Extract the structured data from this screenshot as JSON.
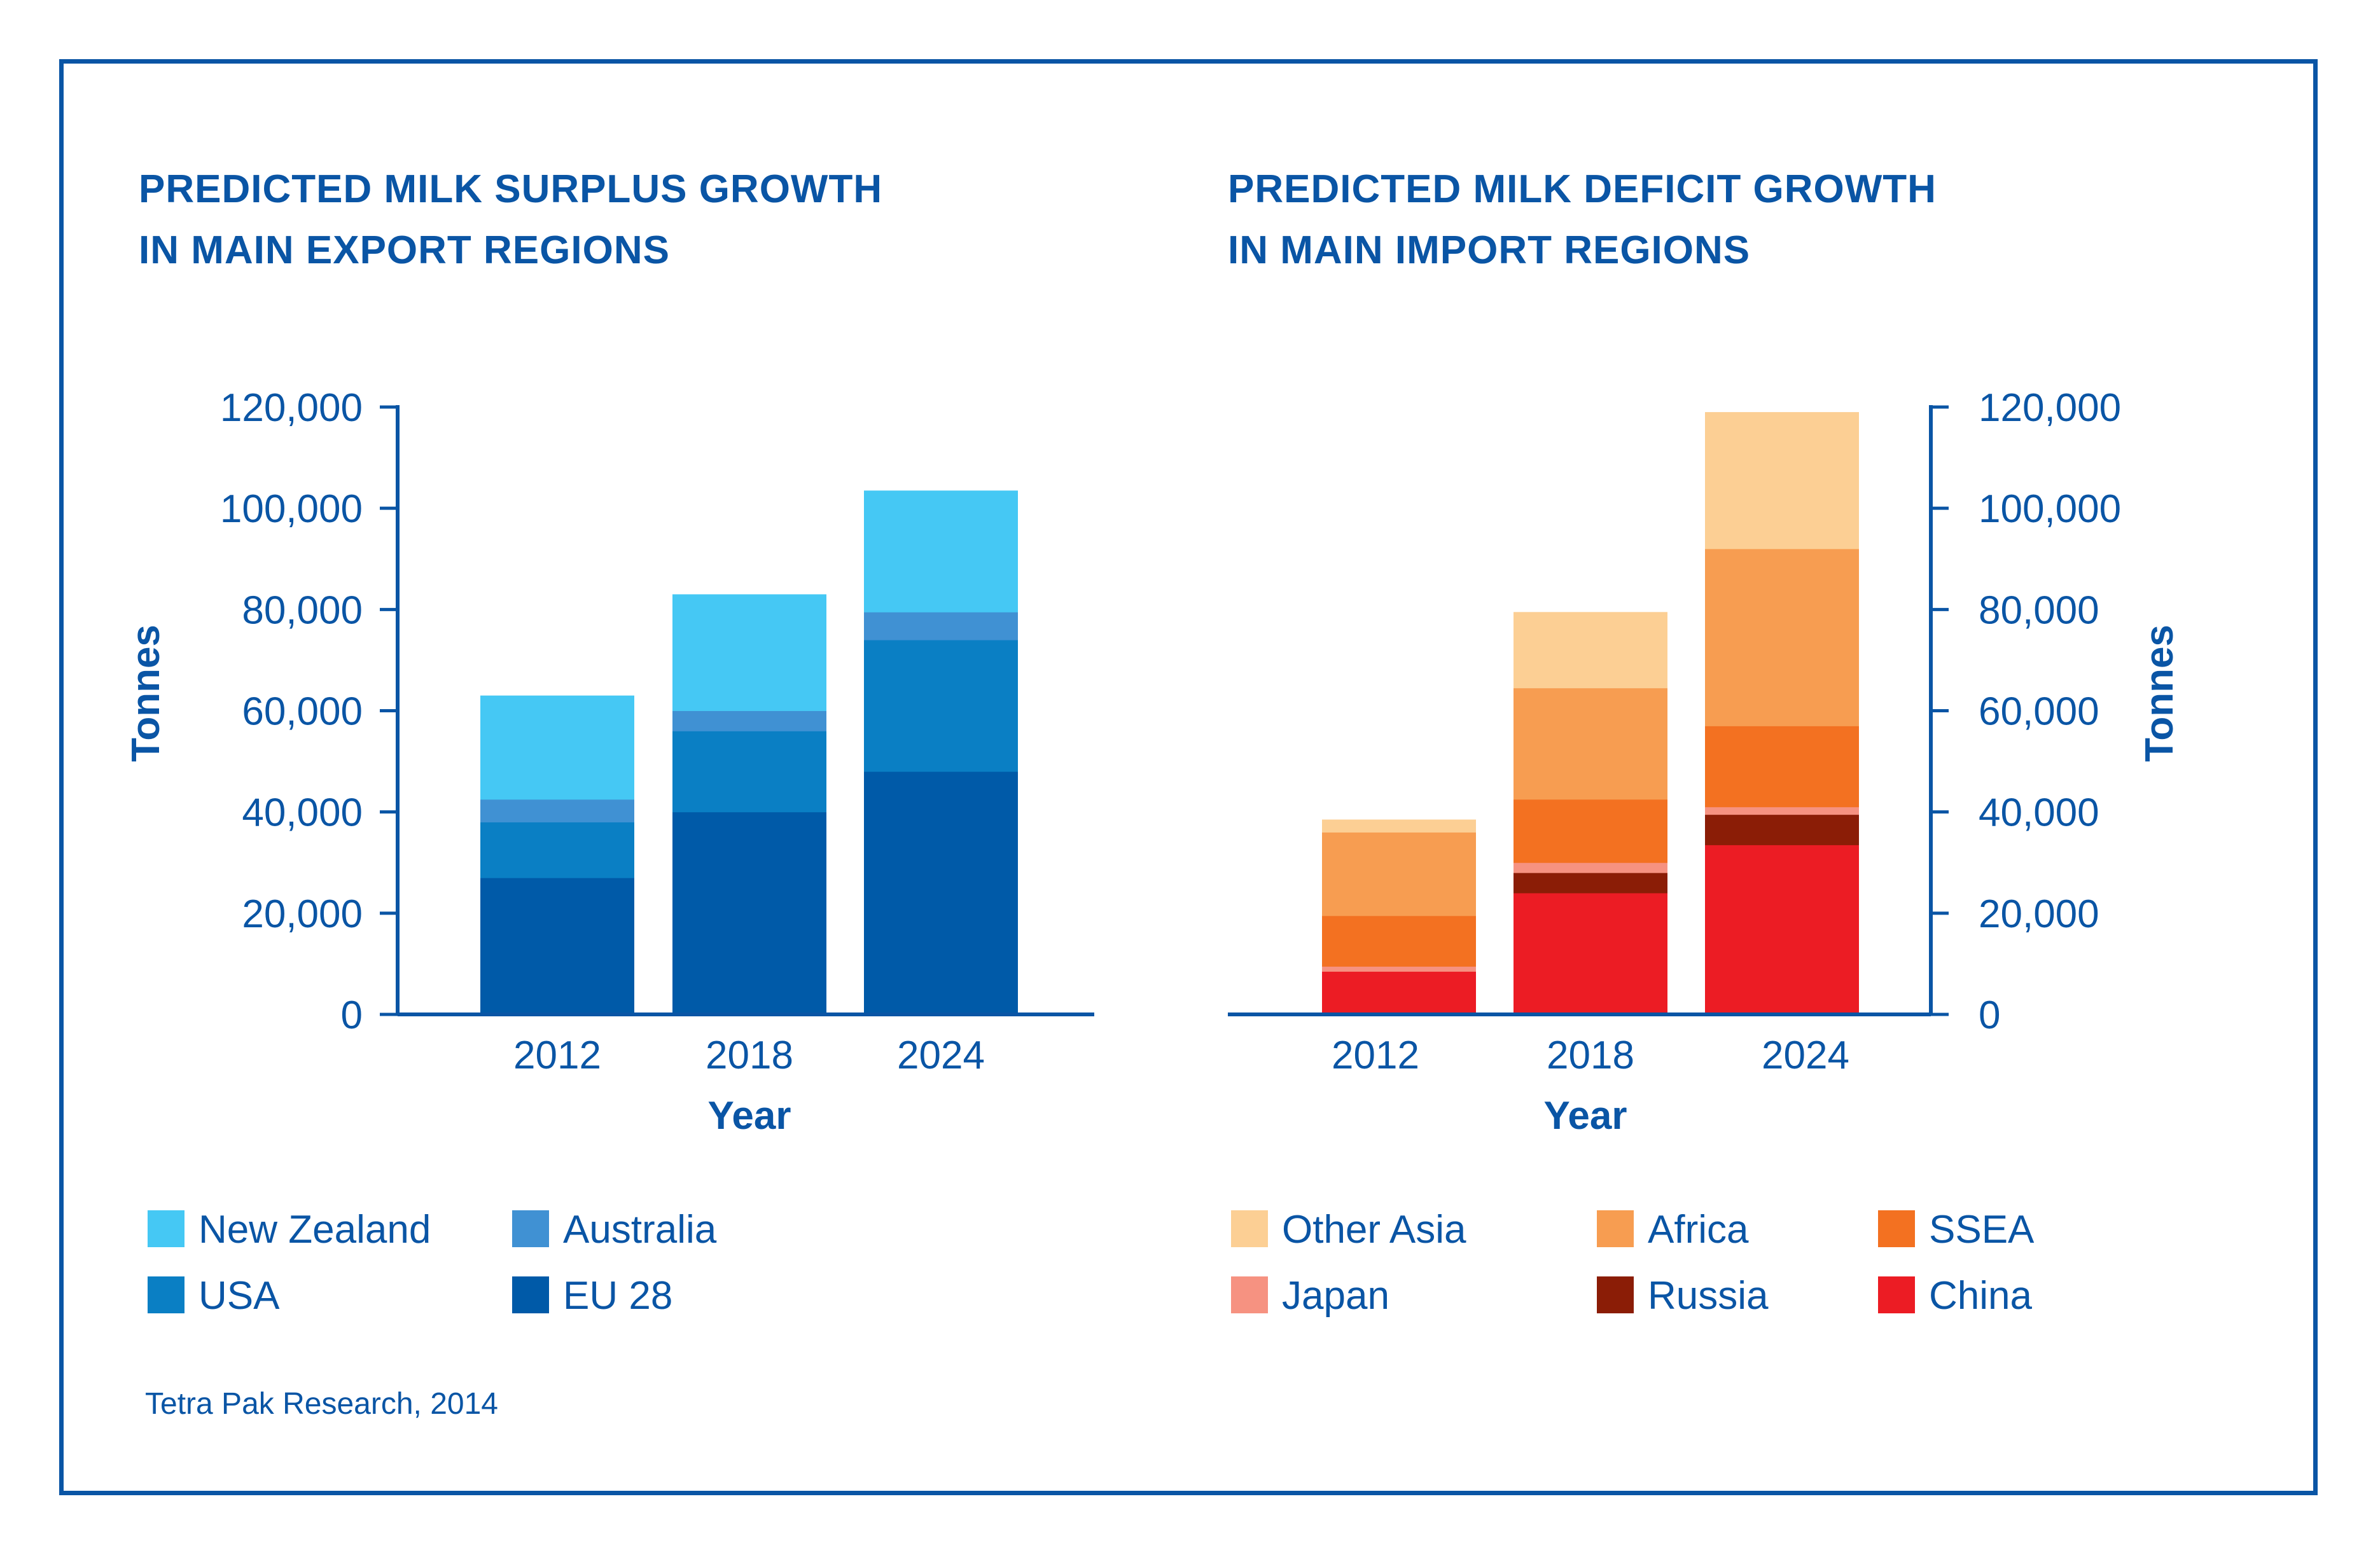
{
  "source": "Tetra Pak Research, 2014",
  "chart_data": [
    {
      "type": "bar",
      "stacked": true,
      "title_line1": "PREDICTED MILK SURPLUS GROWTH",
      "title_line2": "IN MAIN EXPORT REGIONS",
      "xlabel": "Year",
      "ylabel": "Tonnes",
      "ylim": [
        0,
        120000
      ],
      "yticks": [
        "0",
        "20,000",
        "40,000",
        "60,000",
        "80,000",
        "100,000",
        "120,000"
      ],
      "y_axis_side": "left",
      "categories": [
        "2012",
        "2018",
        "2024"
      ],
      "series": [
        {
          "name": "EU 28",
          "color": "#005aa8",
          "values": [
            27000,
            40000,
            48000
          ]
        },
        {
          "name": "USA",
          "color": "#0a7fc4",
          "values": [
            11000,
            16000,
            26000
          ]
        },
        {
          "name": "Australia",
          "color": "#4091d3",
          "values": [
            4500,
            4000,
            5500
          ]
        },
        {
          "name": "New Zealand",
          "color": "#45c8f4",
          "values": [
            20500,
            23000,
            24000
          ]
        }
      ],
      "legend": [
        {
          "name": "New Zealand",
          "color": "#45c8f4"
        },
        {
          "name": "Australia",
          "color": "#4091d3"
        },
        {
          "name": "USA",
          "color": "#0a7fc4"
        },
        {
          "name": "EU 28",
          "color": "#005aa8"
        }
      ]
    },
    {
      "type": "bar",
      "stacked": true,
      "title_line1": "PREDICTED MILK DEFICIT GROWTH",
      "title_line2": "IN MAIN IMPORT REGIONS",
      "xlabel": "Year",
      "ylabel": "Tonnes",
      "ylim": [
        0,
        120000
      ],
      "yticks": [
        "0",
        "20,000",
        "40,000",
        "60,000",
        "80,000",
        "100,000",
        "120,000"
      ],
      "y_axis_side": "right",
      "categories": [
        "2012",
        "2018",
        "2024"
      ],
      "series": [
        {
          "name": "China",
          "color": "#ec1c24",
          "values": [
            8500,
            24000,
            33500
          ]
        },
        {
          "name": "Russia",
          "color": "#8b1d06",
          "values": [
            0,
            4000,
            6000
          ]
        },
        {
          "name": "Japan",
          "color": "#f69281",
          "values": [
            1000,
            2000,
            1500
          ]
        },
        {
          "name": "SSEA",
          "color": "#f37121",
          "values": [
            10000,
            12500,
            16000
          ]
        },
        {
          "name": "Africa",
          "color": "#f79d51",
          "values": [
            16500,
            22000,
            35000
          ]
        },
        {
          "name": "Other Asia",
          "color": "#fccf94",
          "values": [
            2500,
            15000,
            27000
          ]
        }
      ],
      "legend": [
        {
          "name": "Other Asia",
          "color": "#fccf94"
        },
        {
          "name": "Africa",
          "color": "#f79d51"
        },
        {
          "name": "SSEA",
          "color": "#f37121"
        },
        {
          "name": "Japan",
          "color": "#f69281"
        },
        {
          "name": "Russia",
          "color": "#8b1d06"
        },
        {
          "name": "China",
          "color": "#ec1c24"
        }
      ]
    }
  ]
}
